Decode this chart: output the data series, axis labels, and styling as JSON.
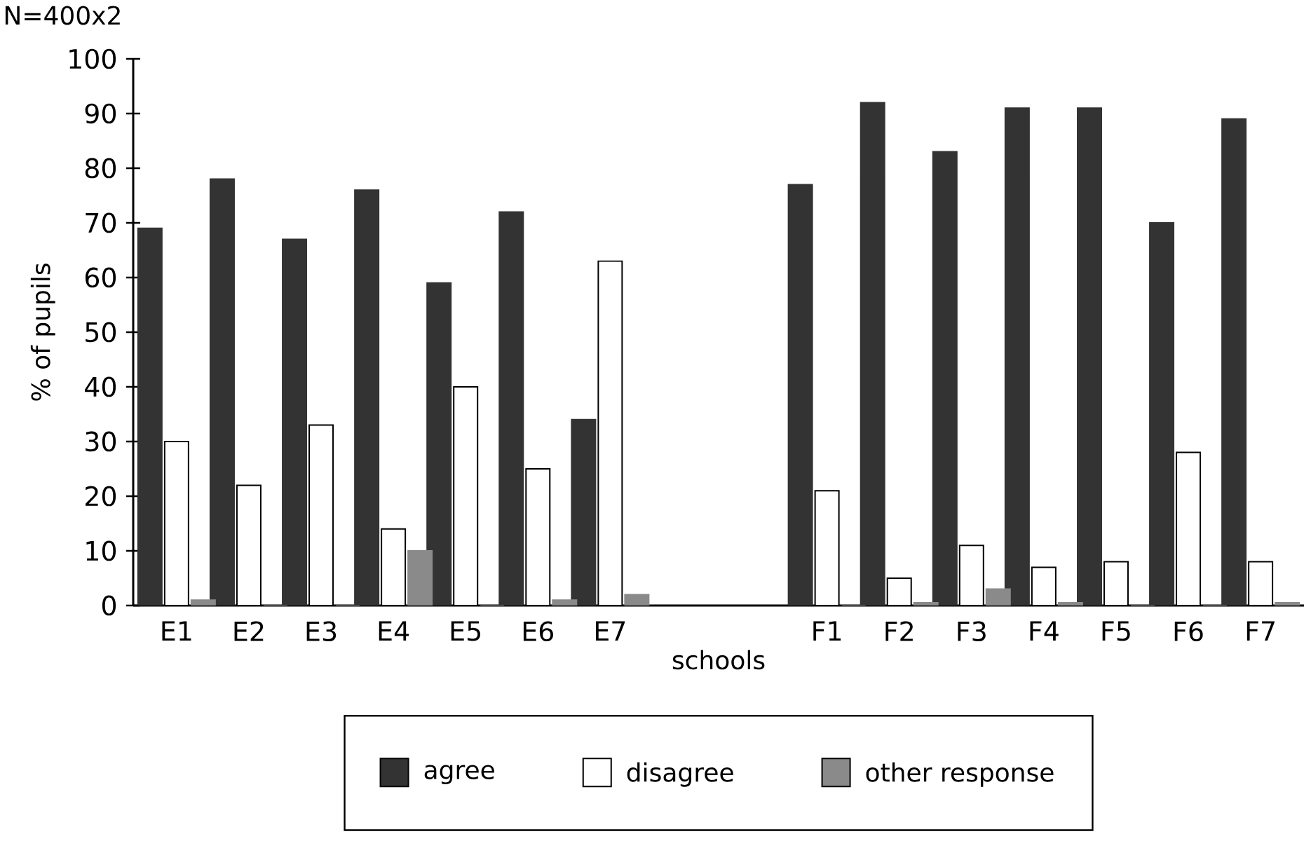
{
  "chart_data": {
    "type": "bar",
    "xlabel": "schools",
    "ylabel": "% of pupils",
    "annotations": [
      "N=400x2"
    ],
    "categories": [
      "E1",
      "E2",
      "E3",
      "E4",
      "E5",
      "E6",
      "E7",
      null,
      null,
      "F1",
      "F2",
      "F3",
      "F4",
      "F5",
      "F6",
      "F7"
    ],
    "series": [
      {
        "name": "agree",
        "color": "#333333",
        "values": [
          69,
          78,
          67,
          76,
          59,
          72,
          34,
          null,
          null,
          77,
          92,
          83,
          91,
          91,
          70,
          89
        ]
      },
      {
        "name": "disagree",
        "color": "#ffffff",
        "values": [
          30,
          22,
          33,
          14,
          40,
          25,
          63,
          null,
          null,
          21,
          5,
          11,
          7,
          8,
          28,
          8
        ]
      },
      {
        "name": "other response",
        "color": "#8a8a8a",
        "values": [
          1,
          0,
          0,
          10,
          0,
          1,
          2,
          null,
          null,
          0,
          0.5,
          3,
          0.5,
          0,
          0,
          0.5
        ]
      }
    ],
    "ylim": [
      0,
      100
    ],
    "yticks": [
      0,
      10,
      20,
      30,
      40,
      50,
      60,
      70,
      80,
      90,
      100
    ],
    "legend": "bottom",
    "grid": false
  }
}
